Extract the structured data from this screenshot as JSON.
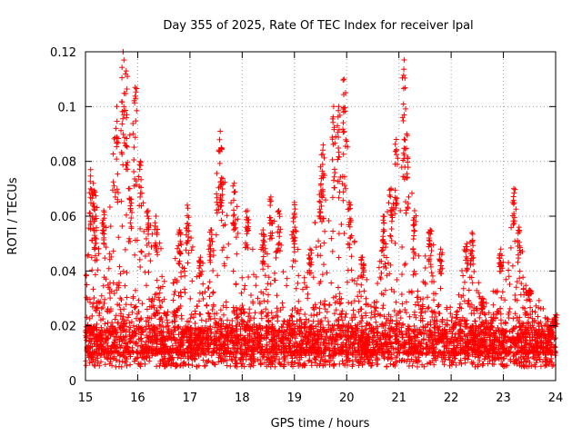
{
  "chart_data": {
    "type": "scatter",
    "title": "Day 355 of 2025, Rate Of TEC Index for receiver lpal",
    "xlabel": "GPS time / hours",
    "ylabel": "ROTI / TECUs",
    "xlim": [
      15,
      24
    ],
    "ylim": [
      0,
      0.12
    ],
    "x_ticks": [
      15,
      16,
      17,
      18,
      19,
      20,
      21,
      22,
      23,
      24
    ],
    "x_tick_labels": [
      "15",
      "16",
      "17",
      "18",
      "19",
      "20",
      "21",
      "22",
      "23",
      "24"
    ],
    "y_ticks": [
      0,
      0.02,
      0.04,
      0.06,
      0.08,
      0.1,
      0.12
    ],
    "y_tick_labels": [
      "0",
      "0.02",
      "0.04",
      "0.06",
      "0.08",
      "0.1",
      "0.12"
    ],
    "grid": true,
    "marker": "+",
    "series": [
      {
        "name": "ROTI",
        "color": "#ff0000",
        "envelope_note": "approximate upper envelope of the dense scatter (hour, ROTI)",
        "peaks": [
          {
            "x": 15.1,
            "y": 0.077
          },
          {
            "x": 15.15,
            "y": 0.072
          },
          {
            "x": 15.2,
            "y": 0.06
          },
          {
            "x": 15.35,
            "y": 0.062
          },
          {
            "x": 15.6,
            "y": 0.1
          },
          {
            "x": 15.72,
            "y": 0.12
          },
          {
            "x": 15.78,
            "y": 0.113
          },
          {
            "x": 15.85,
            "y": 0.07
          },
          {
            "x": 15.95,
            "y": 0.107
          },
          {
            "x": 16.05,
            "y": 0.08
          },
          {
            "x": 16.2,
            "y": 0.062
          },
          {
            "x": 16.35,
            "y": 0.06
          },
          {
            "x": 16.8,
            "y": 0.055
          },
          {
            "x": 16.95,
            "y": 0.064
          },
          {
            "x": 17.2,
            "y": 0.045
          },
          {
            "x": 17.4,
            "y": 0.055
          },
          {
            "x": 17.58,
            "y": 0.091
          },
          {
            "x": 17.6,
            "y": 0.085
          },
          {
            "x": 17.85,
            "y": 0.072
          },
          {
            "x": 18.1,
            "y": 0.062
          },
          {
            "x": 18.4,
            "y": 0.055
          },
          {
            "x": 18.55,
            "y": 0.067
          },
          {
            "x": 18.7,
            "y": 0.062
          },
          {
            "x": 19.0,
            "y": 0.065
          },
          {
            "x": 19.3,
            "y": 0.048
          },
          {
            "x": 19.5,
            "y": 0.078
          },
          {
            "x": 19.55,
            "y": 0.086
          },
          {
            "x": 19.75,
            "y": 0.1
          },
          {
            "x": 19.85,
            "y": 0.1
          },
          {
            "x": 19.95,
            "y": 0.11
          },
          {
            "x": 20.05,
            "y": 0.065
          },
          {
            "x": 20.3,
            "y": 0.045
          },
          {
            "x": 20.7,
            "y": 0.06
          },
          {
            "x": 20.85,
            "y": 0.07
          },
          {
            "x": 20.95,
            "y": 0.088
          },
          {
            "x": 21.1,
            "y": 0.117
          },
          {
            "x": 21.15,
            "y": 0.09
          },
          {
            "x": 21.3,
            "y": 0.062
          },
          {
            "x": 21.6,
            "y": 0.055
          },
          {
            "x": 21.8,
            "y": 0.048
          },
          {
            "x": 22.3,
            "y": 0.05
          },
          {
            "x": 22.4,
            "y": 0.054
          },
          {
            "x": 22.6,
            "y": 0.03
          },
          {
            "x": 22.95,
            "y": 0.048
          },
          {
            "x": 23.2,
            "y": 0.07
          },
          {
            "x": 23.3,
            "y": 0.056
          },
          {
            "x": 23.5,
            "y": 0.033
          },
          {
            "x": 23.9,
            "y": 0.02
          },
          {
            "x": 24.0,
            "y": 0.024
          }
        ],
        "baseline_range": [
          0.005,
          0.02
        ]
      }
    ]
  },
  "style": {
    "point_color": "#ff0000",
    "grid_color": "#a0a0a0",
    "axis_color": "#000000"
  }
}
